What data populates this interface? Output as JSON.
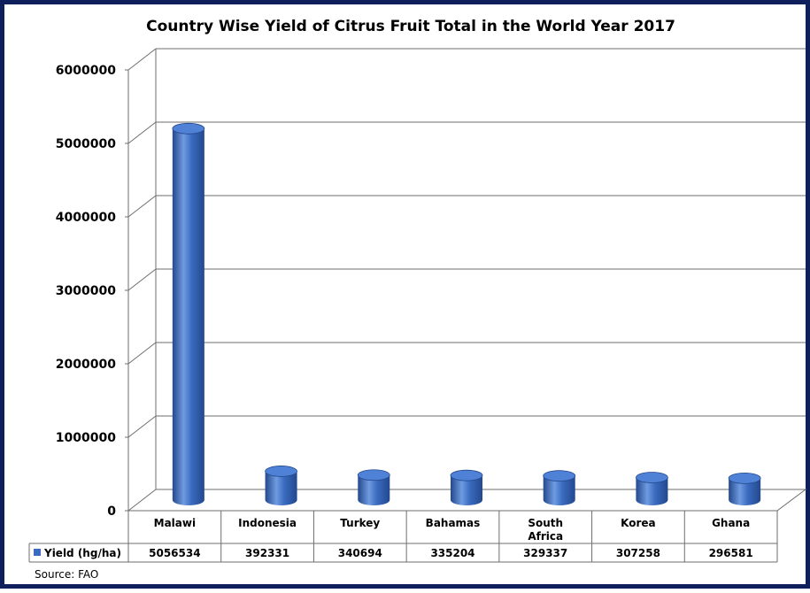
{
  "colors": {
    "frame": "#0f1f5c",
    "bar": "#3a6bbf",
    "bar_dark": "#23488d",
    "bar_light": "#6f9be0",
    "bar_top": "#4f82d6",
    "grid": "#6e6e6e"
  },
  "chart_data": {
    "type": "bar",
    "title": "Country Wise Yield of Citrus Fruit Total in the World Year 2017",
    "categories": [
      "Malawi",
      "Indonesia",
      "Turkey",
      "Bahamas",
      "South Africa",
      "Korea",
      "Ghana"
    ],
    "series": [
      {
        "name": "Yield (hg/ha)",
        "values": [
          5056534,
          392331,
          340694,
          335204,
          329337,
          307258,
          296581
        ]
      }
    ],
    "value_labels": [
      "5056534",
      "392331",
      "340694",
      "335204",
      "329337",
      "307258",
      "296581"
    ],
    "yticks": [
      "0",
      "1000000",
      "2000000",
      "3000000",
      "4000000",
      "5000000",
      "6000000"
    ],
    "ylim": [
      0,
      6000000
    ],
    "grid": true,
    "legend": "data-table",
    "source": "Source: FAO"
  }
}
